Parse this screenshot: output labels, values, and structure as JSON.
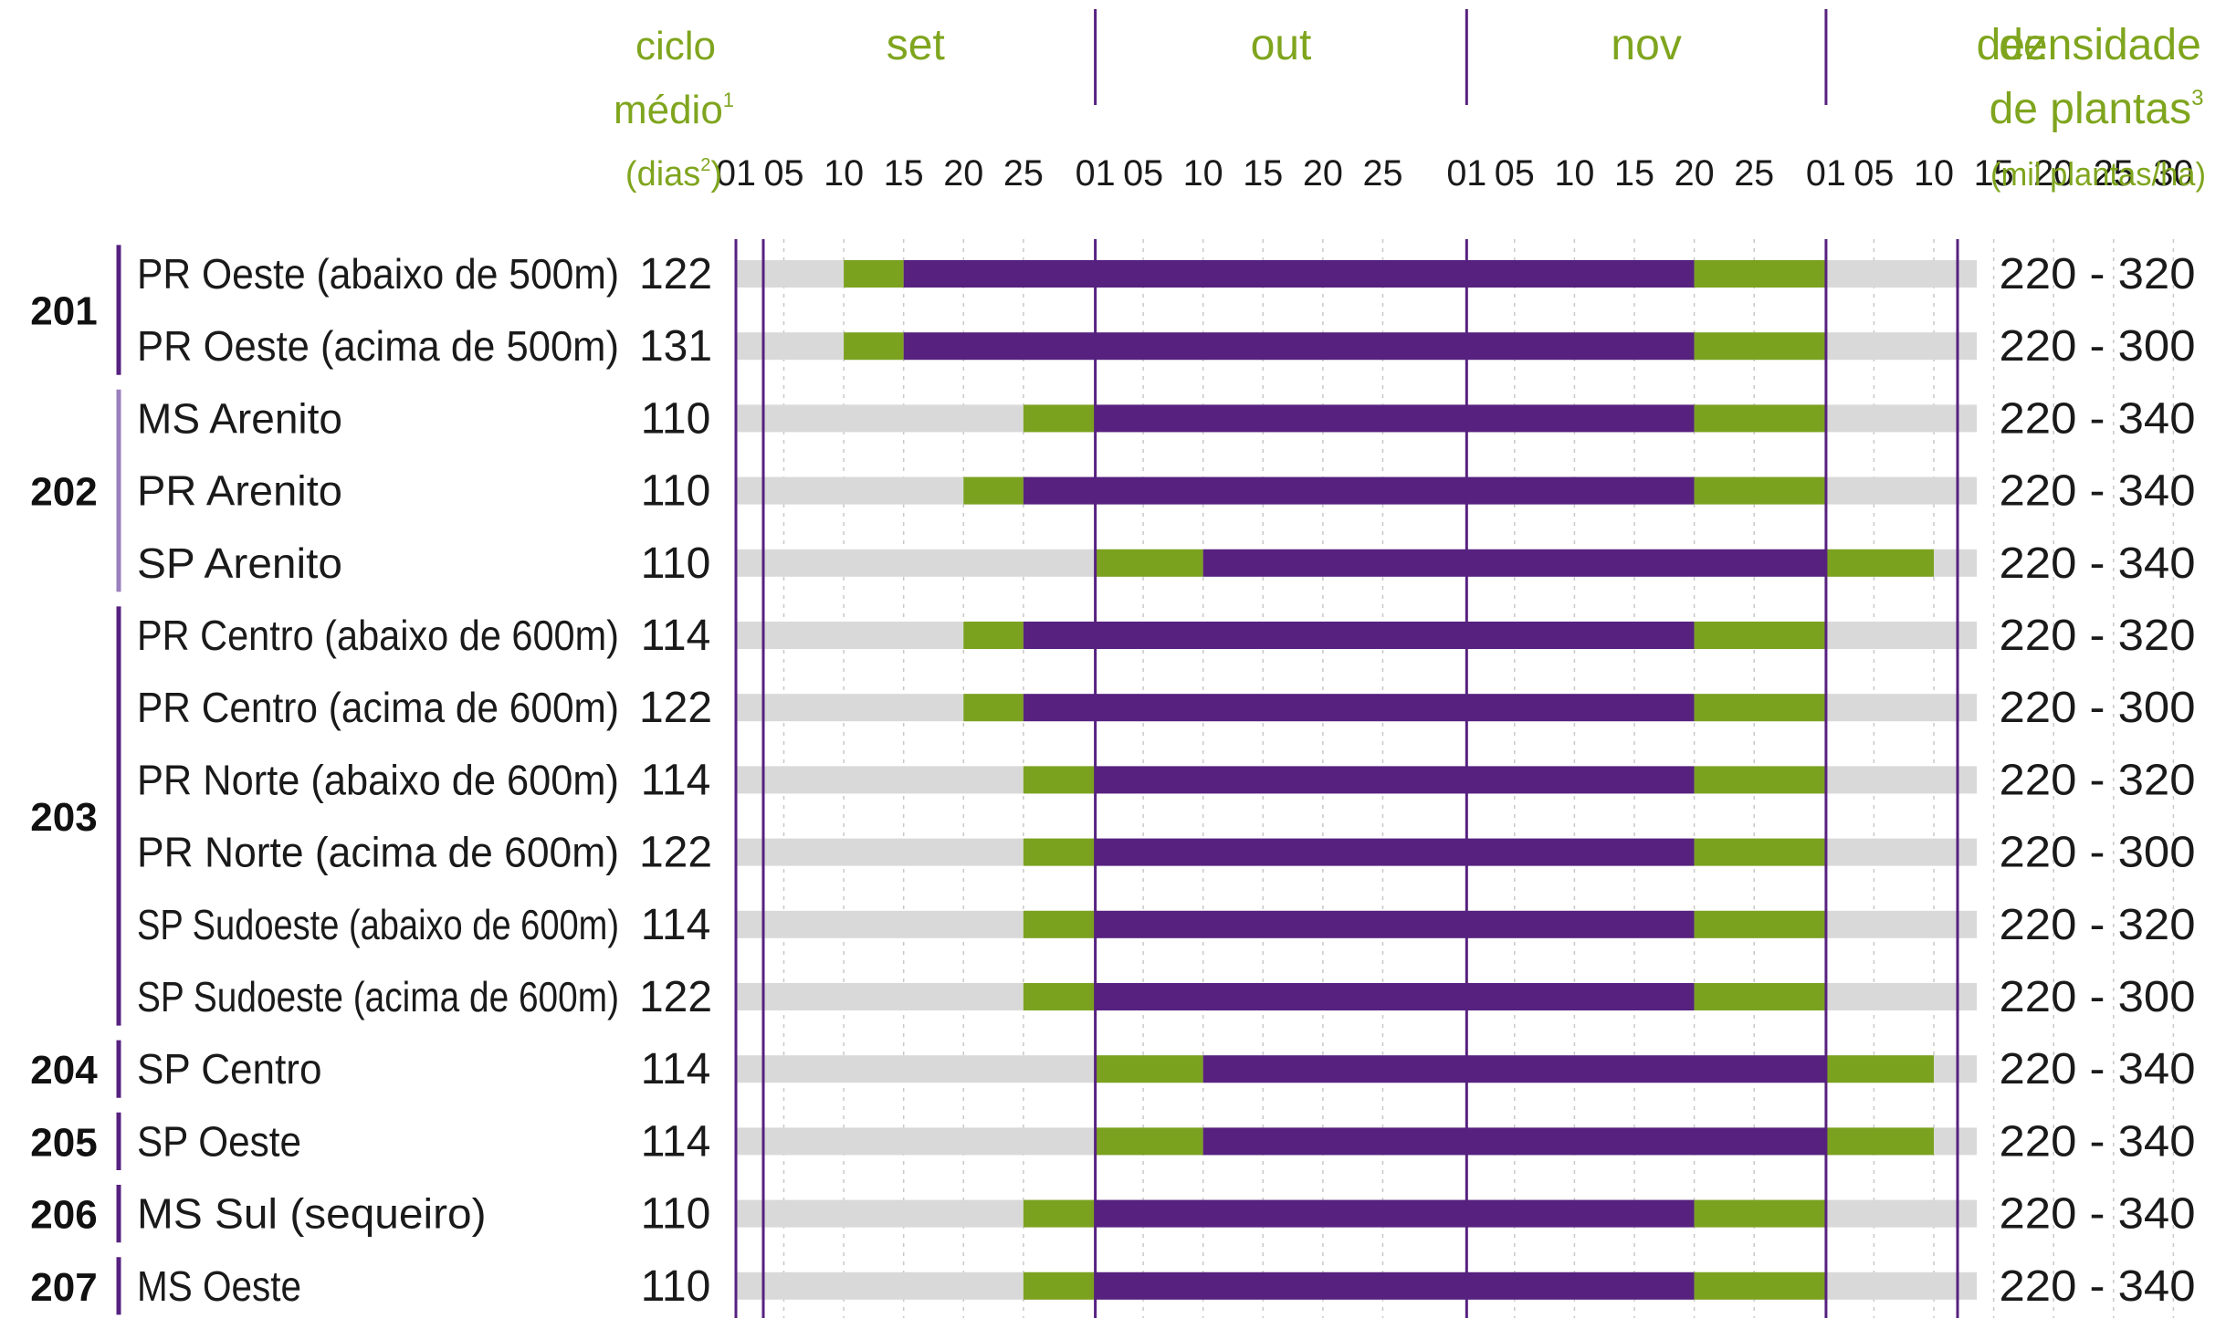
{
  "header": {
    "ciclo": [
      "ciclo",
      "médio",
      "(dias",
      ")"
    ],
    "ciclo_sup": [
      "1",
      "2"
    ],
    "densidade": [
      "densidade",
      "de plantas",
      "(mil plantas/ha)"
    ],
    "densidade_sup": "3"
  },
  "chart_data": {
    "type": "gantt",
    "months": [
      "set",
      "out",
      "nov",
      "dez"
    ],
    "day_ticks": [
      "01",
      "05",
      "10",
      "15",
      "20",
      "25",
      "01",
      "05",
      "10",
      "15",
      "20",
      "25",
      "01",
      "05",
      "10",
      "15",
      "20",
      "25",
      "01",
      "05",
      "10",
      "15",
      "20",
      "25",
      "30"
    ],
    "colors": {
      "outside": "#d9d9d9",
      "tolerated": "#7ba21f",
      "recommended": "#56217f",
      "month_line": "#56217f"
    },
    "groups": [
      {
        "id": "201",
        "rows": [
          0,
          1
        ]
      },
      {
        "id": "202",
        "rows": [
          2,
          3,
          4
        ]
      },
      {
        "id": "203",
        "rows": [
          5,
          6,
          7,
          8,
          9,
          10
        ]
      },
      {
        "id": "204",
        "rows": [
          11
        ]
      },
      {
        "id": "205",
        "rows": [
          12
        ]
      },
      {
        "id": "206",
        "rows": [
          13
        ]
      },
      {
        "id": "207",
        "rows": [
          14
        ]
      }
    ],
    "rows": [
      {
        "region": "PR Oeste (abaixo de 500m)",
        "cycle": "122",
        "density": "220 - 320",
        "green1": [
          "set 10",
          "set 15"
        ],
        "purple": [
          "set 15",
          "nov 20"
        ],
        "green2": [
          "nov 20",
          "dez 01"
        ]
      },
      {
        "region": "PR Oeste (acima de 500m)",
        "cycle": "131",
        "density": "220 - 300",
        "green1": [
          "set 10",
          "set 15"
        ],
        "purple": [
          "set 15",
          "nov 20"
        ],
        "green2": [
          "nov 20",
          "dez 01"
        ]
      },
      {
        "region": "MS Arenito",
        "cycle": "110",
        "density": "220 - 340",
        "green1": [
          "set 25",
          "out 01"
        ],
        "purple": [
          "out 01",
          "nov 20"
        ],
        "green2": [
          "nov 20",
          "dez 01"
        ]
      },
      {
        "region": "PR Arenito",
        "cycle": "110",
        "density": "220 - 340",
        "green1": [
          "set 20",
          "set 25"
        ],
        "purple": [
          "set 25",
          "nov 20"
        ],
        "green2": [
          "nov 20",
          "dez 01"
        ]
      },
      {
        "region": "SP Arenito",
        "cycle": "110",
        "density": "220 - 340",
        "green1": [
          "out 01",
          "out 10"
        ],
        "purple": [
          "out 10",
          "dez 01"
        ],
        "green2": [
          "dez 01",
          "dez 10"
        ]
      },
      {
        "region": "PR Centro (abaixo de 600m)",
        "cycle": "114",
        "density": "220 - 320",
        "green1": [
          "set 20",
          "set 25"
        ],
        "purple": [
          "set 25",
          "nov 20"
        ],
        "green2": [
          "nov 20",
          "dez 01"
        ]
      },
      {
        "region": "PR Centro (acima de 600m)",
        "cycle": "122",
        "density": "220 - 300",
        "green1": [
          "set 20",
          "set 25"
        ],
        "purple": [
          "set 25",
          "nov 20"
        ],
        "green2": [
          "nov 20",
          "dez 01"
        ]
      },
      {
        "region": "PR Norte (abaixo de 600m)",
        "cycle": "114",
        "density": "220 - 320",
        "green1": [
          "set 25",
          "out 01"
        ],
        "purple": [
          "out 01",
          "nov 20"
        ],
        "green2": [
          "nov 20",
          "dez 01"
        ]
      },
      {
        "region": "PR Norte (acima de 600m)",
        "cycle": "122",
        "density": "220 - 300",
        "green1": [
          "set 25",
          "out 01"
        ],
        "purple": [
          "out 01",
          "nov 20"
        ],
        "green2": [
          "nov 20",
          "dez 01"
        ]
      },
      {
        "region": "SP Sudoeste (abaixo de 600m)",
        "cycle": "114",
        "density": "220 - 320",
        "green1": [
          "set 25",
          "out 01"
        ],
        "purple": [
          "out 01",
          "nov 20"
        ],
        "green2": [
          "nov 20",
          "dez 01"
        ]
      },
      {
        "region": "SP Sudoeste (acima de 600m)",
        "cycle": "122",
        "density": "220 - 300",
        "green1": [
          "set 25",
          "out 01"
        ],
        "purple": [
          "out 01",
          "nov 20"
        ],
        "green2": [
          "nov 20",
          "dez 01"
        ]
      },
      {
        "region": "SP Centro",
        "cycle": "114",
        "density": "220 - 340",
        "green1": [
          "out 01",
          "out 10"
        ],
        "purple": [
          "out 10",
          "dez 01"
        ],
        "green2": [
          "dez 01",
          "dez 10"
        ]
      },
      {
        "region": "SP Oeste",
        "cycle": "114",
        "density": "220 - 340",
        "green1": [
          "out 01",
          "out 10"
        ],
        "purple": [
          "out 10",
          "dez 01"
        ],
        "green2": [
          "dez 01",
          "dez 10"
        ]
      },
      {
        "region": "MS Sul (sequeiro)",
        "cycle": "110",
        "density": "220 - 340",
        "green1": [
          "set 25",
          "out 01"
        ],
        "purple": [
          "out 01",
          "nov 20"
        ],
        "green2": [
          "nov 20",
          "dez 01"
        ]
      },
      {
        "region": "MS Oeste",
        "cycle": "110",
        "density": "220 - 340",
        "green1": [
          "set 25",
          "out 01"
        ],
        "purple": [
          "out 01",
          "nov 20"
        ],
        "green2": [
          "nov 20",
          "dez 01"
        ]
      }
    ]
  }
}
